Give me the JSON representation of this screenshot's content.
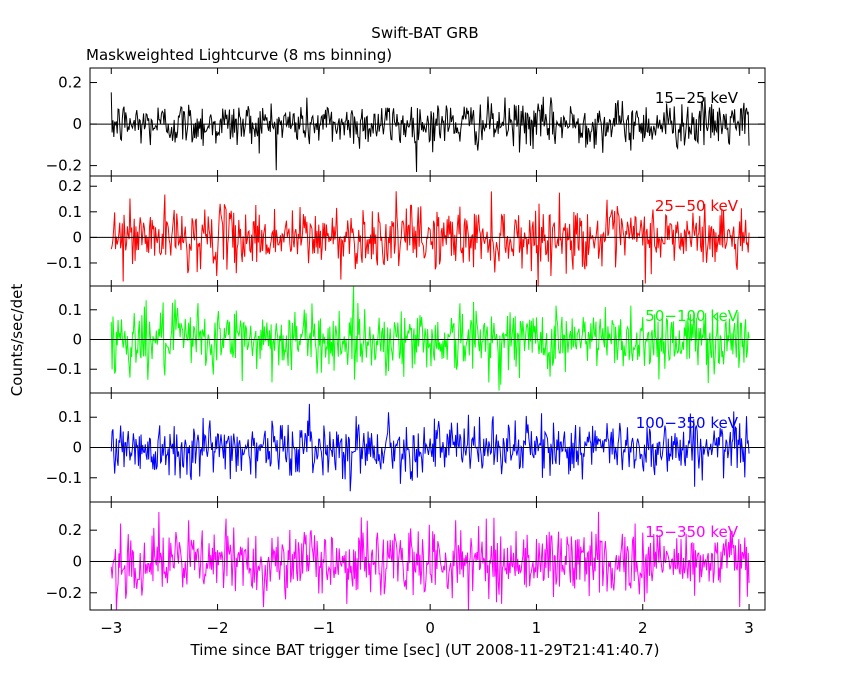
{
  "header": {
    "title": "Swift-BAT GRB",
    "subtitle": "Maskweighted Lightcurve (8 ms binning)"
  },
  "chart_data": {
    "type": "line",
    "title": "Swift-BAT GRB",
    "subtitle": "Maskweighted Lightcurve (8 ms binning)",
    "xlabel": "Time since BAT trigger time [sec] (UT 2008-11-29T21:41:40.7)",
    "ylabel": "Counts/sec/det",
    "xlim": [
      -3.2,
      3.15
    ],
    "x_ticks": [
      -3,
      -2,
      -1,
      0,
      1,
      2,
      3
    ],
    "x_tick_labels": [
      "−3",
      "−2",
      "−1",
      "0",
      "1",
      "2",
      "3"
    ],
    "binning_sec": 0.008,
    "x_start": -3.0,
    "x_end": 3.0,
    "panels": [
      {
        "name": "15-25 keV",
        "label": "15−25 keV",
        "color": "#000000",
        "ylim": [
          -0.25,
          0.27
        ],
        "y_ticks": [
          -0.2,
          0,
          0.2
        ],
        "y_tick_labels": [
          "−0.2",
          "0",
          "0.2"
        ],
        "noise_sigma": 0.055,
        "mean": 0.0
      },
      {
        "name": "25-50 keV",
        "label": "25−50 keV",
        "color": "#ff0000",
        "ylim": [
          -0.19,
          0.24
        ],
        "y_ticks": [
          -0.1,
          0,
          0.1,
          0.2
        ],
        "y_tick_labels": [
          "−0.1",
          "0",
          "0.1",
          "0.2"
        ],
        "noise_sigma": 0.06,
        "mean": 0.0
      },
      {
        "name": "50-100 keV",
        "label": "50−100 keV",
        "color": "#00ff00",
        "ylim": [
          -0.18,
          0.18
        ],
        "y_ticks": [
          -0.1,
          0,
          0.1
        ],
        "y_tick_labels": [
          "−0.1",
          "0",
          "0.1"
        ],
        "noise_sigma": 0.055,
        "mean": 0.0
      },
      {
        "name": "100-350 keV",
        "label": "100−350 keV",
        "color": "#0000ff",
        "ylim": [
          -0.18,
          0.18
        ],
        "y_ticks": [
          -0.1,
          0,
          0.1
        ],
        "y_tick_labels": [
          "−0.1",
          "0",
          "0.1"
        ],
        "noise_sigma": 0.045,
        "mean": 0.0
      },
      {
        "name": "15-350 keV",
        "label": "15−350 keV",
        "color": "#ff00ff",
        "ylim": [
          -0.31,
          0.38
        ],
        "y_ticks": [
          -0.2,
          0,
          0.2
        ],
        "y_tick_labels": [
          "−0.2",
          "0",
          "0.2"
        ],
        "noise_sigma": 0.11,
        "mean": 0.0
      }
    ]
  }
}
